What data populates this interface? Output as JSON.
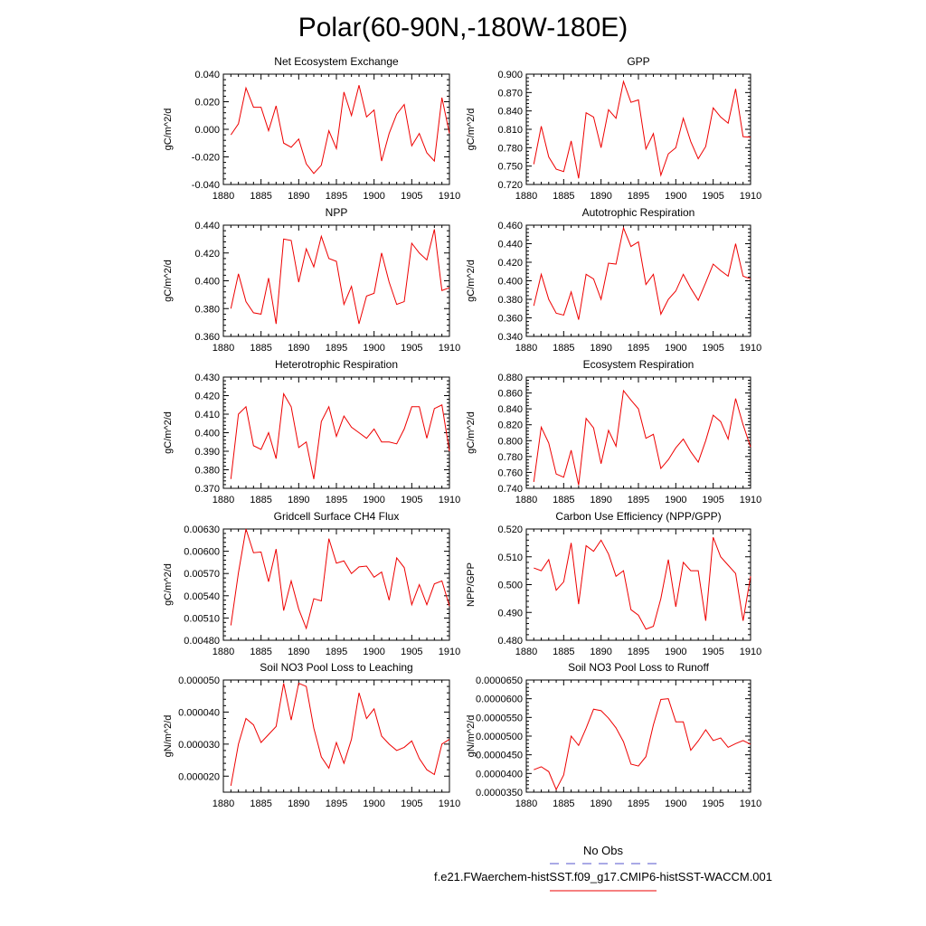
{
  "figure": {
    "title": "Polar(60-90N,-180W-180E)",
    "legend": {
      "entries": [
        {
          "label": "No Obs",
          "color": "#5555cc",
          "dash": "dashed"
        },
        {
          "label": "f.e21.FWaerchem-histSST.f09_g17.CMIP6-histSST-WACCM.001",
          "color": "#ee0000",
          "dash": "solid"
        }
      ]
    }
  },
  "chart_data": [
    {
      "type": "line",
      "title": "Net Ecosystem Exchange",
      "ylabel": "gC/m^2/d",
      "xlim": [
        1880,
        1910
      ],
      "ylim": [
        -0.04,
        0.04
      ],
      "xticks": [
        "1880",
        "1885",
        "1890",
        "1895",
        "1900",
        "1905",
        "1910"
      ],
      "yticks": [
        "-0.040",
        "-0.020",
        "0.000",
        "0.020",
        "0.040"
      ],
      "series": [
        {
          "color": "#ee0000",
          "x": [
            1881,
            1882,
            1883,
            1884,
            1885,
            1886,
            1887,
            1888,
            1889,
            1890,
            1891,
            1892,
            1893,
            1894,
            1895,
            1896,
            1897,
            1898,
            1899,
            1900,
            1901,
            1902,
            1903,
            1904,
            1905,
            1906,
            1907,
            1908,
            1909,
            1910
          ],
          "values": [
            -0.004,
            0.004,
            0.03,
            0.016,
            0.016,
            -0.001,
            0.017,
            -0.01,
            -0.013,
            -0.007,
            -0.025,
            -0.032,
            -0.026,
            -0.001,
            -0.014,
            0.027,
            0.01,
            0.032,
            0.009,
            0.014,
            -0.023,
            -0.003,
            0.011,
            0.018,
            -0.012,
            -0.003,
            -0.017,
            -0.023,
            0.023,
            -0.003
          ]
        }
      ]
    },
    {
      "type": "line",
      "title": "GPP",
      "ylabel": "gC/m^2/d",
      "xlim": [
        1880,
        1910
      ],
      "ylim": [
        0.72,
        0.9
      ],
      "xticks": [
        "1880",
        "1885",
        "1890",
        "1895",
        "1900",
        "1905",
        "1910"
      ],
      "yticks": [
        "0.720",
        "0.750",
        "0.780",
        "0.810",
        "0.840",
        "0.870",
        "0.900"
      ],
      "series": [
        {
          "color": "#ee0000",
          "x": [
            1881,
            1882,
            1883,
            1884,
            1885,
            1886,
            1887,
            1888,
            1889,
            1890,
            1891,
            1892,
            1893,
            1894,
            1895,
            1896,
            1897,
            1898,
            1899,
            1900,
            1901,
            1902,
            1903,
            1904,
            1905,
            1906,
            1907,
            1908,
            1909,
            1910
          ],
          "values": [
            0.753,
            0.815,
            0.765,
            0.745,
            0.741,
            0.791,
            0.73,
            0.837,
            0.83,
            0.78,
            0.842,
            0.828,
            0.888,
            0.854,
            0.858,
            0.778,
            0.803,
            0.735,
            0.77,
            0.78,
            0.828,
            0.79,
            0.762,
            0.782,
            0.845,
            0.83,
            0.82,
            0.876,
            0.798,
            0.797
          ]
        }
      ]
    },
    {
      "type": "line",
      "title": "NPP",
      "ylabel": "gC/m^2/d",
      "xlim": [
        1880,
        1910
      ],
      "ylim": [
        0.36,
        0.44
      ],
      "xticks": [
        "1880",
        "1885",
        "1890",
        "1895",
        "1900",
        "1905",
        "1910"
      ],
      "yticks": [
        "0.360",
        "0.380",
        "0.400",
        "0.420",
        "0.440"
      ],
      "series": [
        {
          "color": "#ee0000",
          "x": [
            1881,
            1882,
            1883,
            1884,
            1885,
            1886,
            1887,
            1888,
            1889,
            1890,
            1891,
            1892,
            1893,
            1894,
            1895,
            1896,
            1897,
            1898,
            1899,
            1900,
            1901,
            1902,
            1903,
            1904,
            1905,
            1906,
            1907,
            1908,
            1909,
            1910
          ],
          "values": [
            0.38,
            0.405,
            0.385,
            0.377,
            0.376,
            0.402,
            0.369,
            0.43,
            0.429,
            0.399,
            0.423,
            0.41,
            0.432,
            0.416,
            0.414,
            0.383,
            0.396,
            0.369,
            0.389,
            0.391,
            0.42,
            0.399,
            0.383,
            0.385,
            0.427,
            0.42,
            0.415,
            0.437,
            0.393,
            0.395
          ]
        }
      ]
    },
    {
      "type": "line",
      "title": "Autotrophic Respiration",
      "ylabel": "gC/m^2/d",
      "xlim": [
        1880,
        1910
      ],
      "ylim": [
        0.34,
        0.46
      ],
      "xticks": [
        "1880",
        "1885",
        "1890",
        "1895",
        "1900",
        "1905",
        "1910"
      ],
      "yticks": [
        "0.340",
        "0.360",
        "0.380",
        "0.400",
        "0.420",
        "0.440",
        "0.460"
      ],
      "series": [
        {
          "color": "#ee0000",
          "x": [
            1881,
            1882,
            1883,
            1884,
            1885,
            1886,
            1887,
            1888,
            1889,
            1890,
            1891,
            1892,
            1893,
            1894,
            1895,
            1896,
            1897,
            1898,
            1899,
            1900,
            1901,
            1902,
            1903,
            1904,
            1905,
            1906,
            1907,
            1908,
            1909,
            1910
          ],
          "values": [
            0.373,
            0.407,
            0.38,
            0.365,
            0.363,
            0.388,
            0.358,
            0.407,
            0.402,
            0.38,
            0.419,
            0.418,
            0.457,
            0.437,
            0.442,
            0.396,
            0.407,
            0.364,
            0.38,
            0.389,
            0.407,
            0.392,
            0.379,
            0.398,
            0.418,
            0.411,
            0.405,
            0.44,
            0.405,
            0.402
          ]
        }
      ]
    },
    {
      "type": "line",
      "title": "Heterotrophic Respiration",
      "ylabel": "gC/m^2/d",
      "xlim": [
        1880,
        1910
      ],
      "ylim": [
        0.37,
        0.43
      ],
      "xticks": [
        "1880",
        "1885",
        "1890",
        "1895",
        "1900",
        "1905",
        "1910"
      ],
      "yticks": [
        "0.370",
        "0.380",
        "0.390",
        "0.400",
        "0.410",
        "0.420",
        "0.430"
      ],
      "series": [
        {
          "color": "#ee0000",
          "x": [
            1881,
            1882,
            1883,
            1884,
            1885,
            1886,
            1887,
            1888,
            1889,
            1890,
            1891,
            1892,
            1893,
            1894,
            1895,
            1896,
            1897,
            1898,
            1899,
            1900,
            1901,
            1902,
            1903,
            1904,
            1905,
            1906,
            1907,
            1908,
            1909,
            1910
          ],
          "values": [
            0.375,
            0.41,
            0.414,
            0.393,
            0.391,
            0.4,
            0.386,
            0.421,
            0.414,
            0.392,
            0.395,
            0.375,
            0.406,
            0.414,
            0.398,
            0.409,
            0.403,
            0.4,
            0.397,
            0.402,
            0.395,
            0.395,
            0.394,
            0.402,
            0.414,
            0.414,
            0.397,
            0.413,
            0.415,
            0.39
          ]
        }
      ]
    },
    {
      "type": "line",
      "title": "Ecosystem Respiration",
      "ylabel": "gC/m^2/d",
      "xlim": [
        1880,
        1910
      ],
      "ylim": [
        0.74,
        0.88
      ],
      "xticks": [
        "1880",
        "1885",
        "1890",
        "1895",
        "1900",
        "1905",
        "1910"
      ],
      "yticks": [
        "0.740",
        "0.760",
        "0.780",
        "0.800",
        "0.820",
        "0.840",
        "0.860",
        "0.880"
      ],
      "series": [
        {
          "color": "#ee0000",
          "x": [
            1881,
            1882,
            1883,
            1884,
            1885,
            1886,
            1887,
            1888,
            1889,
            1890,
            1891,
            1892,
            1893,
            1894,
            1895,
            1896,
            1897,
            1898,
            1899,
            1900,
            1901,
            1902,
            1903,
            1904,
            1905,
            1906,
            1907,
            1908,
            1909,
            1910
          ],
          "values": [
            0.748,
            0.817,
            0.797,
            0.758,
            0.754,
            0.788,
            0.744,
            0.828,
            0.816,
            0.771,
            0.813,
            0.793,
            0.863,
            0.851,
            0.84,
            0.803,
            0.808,
            0.765,
            0.776,
            0.791,
            0.802,
            0.786,
            0.773,
            0.8,
            0.832,
            0.824,
            0.802,
            0.853,
            0.82,
            0.792
          ]
        }
      ]
    },
    {
      "type": "line",
      "title": "Gridcell Surface CH4 Flux",
      "ylabel": "gC/m^2/d",
      "xlim": [
        1880,
        1910
      ],
      "ylim": [
        0.0048,
        0.0063
      ],
      "xticks": [
        "1880",
        "1885",
        "1890",
        "1895",
        "1900",
        "1905",
        "1910"
      ],
      "yticks": [
        "0.00480",
        "0.00510",
        "0.00540",
        "0.00570",
        "0.00600",
        "0.00630"
      ],
      "series": [
        {
          "color": "#ee0000",
          "x": [
            1881,
            1882,
            1883,
            1884,
            1885,
            1886,
            1887,
            1888,
            1889,
            1890,
            1891,
            1892,
            1893,
            1894,
            1895,
            1896,
            1897,
            1898,
            1899,
            1900,
            1901,
            1902,
            1903,
            1904,
            1905,
            1906,
            1907,
            1908,
            1909,
            1910
          ],
          "values": [
            0.005,
            0.00571,
            0.0063,
            0.00598,
            0.00599,
            0.00559,
            0.00603,
            0.0052,
            0.0056,
            0.00522,
            0.00496,
            0.00536,
            0.00533,
            0.00617,
            0.00584,
            0.00587,
            0.0057,
            0.00579,
            0.0058,
            0.00565,
            0.00572,
            0.00534,
            0.00591,
            0.00578,
            0.00528,
            0.00555,
            0.00528,
            0.00556,
            0.0056,
            0.00526
          ]
        }
      ]
    },
    {
      "type": "line",
      "title": "Carbon Use Efficiency (NPP/GPP)",
      "ylabel": "NPP/GPP",
      "xlim": [
        1880,
        1910
      ],
      "ylim": [
        0.48,
        0.52
      ],
      "xticks": [
        "1880",
        "1885",
        "1890",
        "1895",
        "1900",
        "1905",
        "1910"
      ],
      "yticks": [
        "0.480",
        "0.490",
        "0.500",
        "0.510",
        "0.520"
      ],
      "series": [
        {
          "color": "#ee0000",
          "x": [
            1881,
            1882,
            1883,
            1884,
            1885,
            1886,
            1887,
            1888,
            1889,
            1890,
            1891,
            1892,
            1893,
            1894,
            1895,
            1896,
            1897,
            1898,
            1899,
            1900,
            1901,
            1902,
            1903,
            1904,
            1905,
            1906,
            1907,
            1908,
            1909,
            1910
          ],
          "values": [
            0.506,
            0.505,
            0.509,
            0.498,
            0.501,
            0.515,
            0.493,
            0.514,
            0.512,
            0.516,
            0.511,
            0.503,
            0.505,
            0.491,
            0.489,
            0.484,
            0.485,
            0.495,
            0.509,
            0.492,
            0.508,
            0.505,
            0.505,
            0.487,
            0.517,
            0.51,
            0.507,
            0.504,
            0.487,
            0.503
          ]
        }
      ]
    },
    {
      "type": "line",
      "title": "Soil NO3 Pool Loss to Leaching",
      "ylabel": "gN/m^2/d",
      "xlim": [
        1880,
        1910
      ],
      "ylim": [
        1.5e-05,
        5e-05
      ],
      "xticks": [
        "1880",
        "1885",
        "1890",
        "1895",
        "1900",
        "1905",
        "1910"
      ],
      "yticks": [
        "0.000020",
        "0.000030",
        "0.000040",
        "0.000050"
      ],
      "series": [
        {
          "color": "#ee0000",
          "x": [
            1881,
            1882,
            1883,
            1884,
            1885,
            1886,
            1887,
            1888,
            1889,
            1890,
            1891,
            1892,
            1893,
            1894,
            1895,
            1896,
            1897,
            1898,
            1899,
            1900,
            1901,
            1902,
            1903,
            1904,
            1905,
            1906,
            1907,
            1908,
            1909,
            1910
          ],
          "values": [
            1.7e-05,
            3e-05,
            3.8e-05,
            3.6e-05,
            3.05e-05,
            3.3e-05,
            3.55e-05,
            4.9e-05,
            3.75e-05,
            4.9e-05,
            4.8e-05,
            3.5e-05,
            2.6e-05,
            2.25e-05,
            3.05e-05,
            2.4e-05,
            3.15e-05,
            4.6e-05,
            3.8e-05,
            4.1e-05,
            3.25e-05,
            3e-05,
            2.8e-05,
            2.9e-05,
            3.1e-05,
            2.55e-05,
            2.2e-05,
            2.05e-05,
            3e-05,
            3.15e-05
          ]
        }
      ]
    },
    {
      "type": "line",
      "title": "Soil NO3 Pool Loss to Runoff",
      "ylabel": "gN/m^2/d",
      "xlim": [
        1880,
        1910
      ],
      "ylim": [
        3.5e-05,
        6.5e-05
      ],
      "xticks": [
        "1880",
        "1885",
        "1890",
        "1895",
        "1900",
        "1905",
        "1910"
      ],
      "yticks": [
        "0.0000350",
        "0.0000400",
        "0.0000450",
        "0.0000500",
        "0.0000550",
        "0.0000600",
        "0.0000650"
      ],
      "series": [
        {
          "color": "#ee0000",
          "x": [
            1881,
            1882,
            1883,
            1884,
            1885,
            1886,
            1887,
            1888,
            1889,
            1890,
            1891,
            1892,
            1893,
            1894,
            1895,
            1896,
            1897,
            1898,
            1899,
            1900,
            1901,
            1902,
            1903,
            1904,
            1905,
            1906,
            1907,
            1908,
            1909,
            1910
          ],
          "values": [
            4.1e-05,
            4.18e-05,
            4.05e-05,
            3.57e-05,
            3.96e-05,
            5e-05,
            4.75e-05,
            5.21e-05,
            5.72e-05,
            5.68e-05,
            5.48e-05,
            5.22e-05,
            4.85e-05,
            4.25e-05,
            4.2e-05,
            4.45e-05,
            5.3e-05,
            5.98e-05,
            6e-05,
            5.38e-05,
            5.38e-05,
            4.62e-05,
            4.87e-05,
            5.17e-05,
            4.88e-05,
            4.95e-05,
            4.7e-05,
            4.8e-05,
            4.88e-05,
            4.78e-05
          ]
        }
      ]
    }
  ]
}
